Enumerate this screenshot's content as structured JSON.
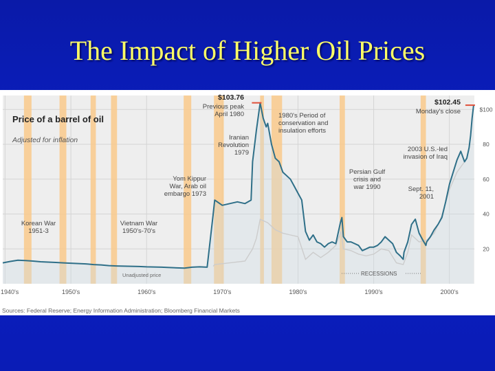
{
  "slide": {
    "title": "The Impact of Higher Oil Prices"
  },
  "chart_data": {
    "type": "line",
    "title": "Price of a barrel of oil",
    "subtitle": "Adjusted for inflation",
    "source": "Sources: Federal Reserve; Energy Information Administration; Bloomberg Financial Markets",
    "xlim": [
      1946,
      2008.3
    ],
    "ylim": [
      0,
      108
    ],
    "x_ticks": [
      {
        "label": "1940's",
        "x": 1946.3
      },
      {
        "label": "1950's",
        "x": 1955
      },
      {
        "label": "1960's",
        "x": 1965
      },
      {
        "label": "1970's",
        "x": 1975
      },
      {
        "label": "1980's",
        "x": 1985
      },
      {
        "label": "1990's",
        "x": 1995
      },
      {
        "label": "2000's",
        "x": 2005
      }
    ],
    "y_ticks": [
      {
        "label": "$100",
        "y": 100
      },
      {
        "label": "80",
        "y": 80
      },
      {
        "label": "60",
        "y": 60
      },
      {
        "label": "40",
        "y": 40
      },
      {
        "label": "20",
        "y": 20
      }
    ],
    "recessions": [
      [
        1948.8,
        1949.8
      ],
      [
        1953.5,
        1954.4
      ],
      [
        1957.6,
        1958.3
      ],
      [
        1960.3,
        1961.1
      ],
      [
        1969.9,
        1970.9
      ],
      [
        1973.9,
        1975.2
      ],
      [
        1980.0,
        1980.5
      ],
      [
        1981.5,
        1982.9
      ],
      [
        1990.5,
        1991.2
      ],
      [
        2001.2,
        2001.9
      ]
    ],
    "recessions_label": "RECESSIONS",
    "unadjusted_label": "Unadjusted price",
    "series": [
      {
        "role": "adjusted",
        "x": [
          1946,
          1947,
          1948,
          1949,
          1950,
          1951,
          1952,
          1953,
          1954,
          1955,
          1956,
          1957,
          1958,
          1959,
          1960,
          1961,
          1962,
          1963,
          1964,
          1965,
          1966,
          1967,
          1968,
          1969,
          1970,
          1971,
          1972,
          1973,
          1973.8,
          1974,
          1975,
          1976,
          1977,
          1978,
          1978.8,
          1979,
          1979.5,
          1980,
          1980.4,
          1980.8,
          1981,
          1981.5,
          1982,
          1982.5,
          1983,
          1983.5,
          1984,
          1984.5,
          1985,
          1985.5,
          1986,
          1986.5,
          1987,
          1987.5,
          1988,
          1988.5,
          1989,
          1989.5,
          1990,
          1990.6,
          1990.8,
          1991,
          1991.5,
          1992,
          1992.5,
          1993,
          1993.5,
          1994,
          1994.5,
          1995,
          1995.5,
          1996,
          1996.5,
          1997,
          1997.5,
          1998,
          1998.5,
          1998.9,
          1999,
          1999.5,
          2000,
          2000.5,
          2001,
          2001.5,
          2001.9,
          2002,
          2002.5,
          2003,
          2003.5,
          2004,
          2004.5,
          2005,
          2005.5,
          2006,
          2006.5,
          2007,
          2007.3,
          2007.6,
          2007.8,
          2008,
          2008.2
        ],
        "values": [
          12,
          12.8,
          13.5,
          13.3,
          13,
          12.6,
          12.4,
          12.2,
          12,
          11.8,
          11.6,
          11.4,
          11,
          10.8,
          10.4,
          10.2,
          10.1,
          10,
          9.9,
          9.7,
          9.6,
          9.5,
          9.3,
          9.1,
          9,
          9.5,
          9.7,
          9.5,
          40,
          48,
          45,
          46,
          47,
          46,
          48,
          70,
          88,
          103.8,
          95,
          90,
          92,
          80,
          72,
          70,
          64,
          62,
          60,
          56,
          52,
          48,
          30,
          25,
          28,
          24,
          23,
          21,
          23,
          24,
          23,
          35,
          38,
          27,
          24,
          24,
          23,
          22,
          19,
          20,
          21,
          21,
          22,
          24,
          27,
          25,
          23,
          18,
          16,
          14,
          18,
          24,
          34,
          37,
          29,
          25,
          22,
          24,
          27,
          31,
          34,
          38,
          47,
          57,
          64,
          71,
          76,
          70,
          72,
          78,
          85,
          95,
          102.45
        ],
        "color": "#2e6f88"
      },
      {
        "role": "unadjusted",
        "x": [
          1973.8,
          1974,
          1976,
          1978,
          1979,
          1979.5,
          1980,
          1981,
          1982,
          1983,
          1984,
          1985,
          1986,
          1987,
          1988,
          1989,
          1990,
          1990.7,
          1991,
          1992,
          1993,
          1994,
          1995,
          1996,
          1997,
          1998,
          1998.9,
          1999.5,
          2000,
          2001,
          2002,
          2003,
          2004,
          2005,
          2006,
          2007
        ],
        "values": [
          10,
          11,
          12,
          13,
          20,
          26,
          37,
          35,
          31,
          29,
          28,
          27,
          14,
          18,
          15,
          18,
          22,
          30,
          20,
          19,
          17,
          16,
          17,
          20,
          19,
          12,
          11,
          18,
          28,
          24,
          25,
          29,
          39,
          54,
          64,
          70
        ],
        "color": "#cccccc"
      }
    ],
    "annotations": [
      {
        "id": "korean-war",
        "lines": [
          "Korean War",
          "1951-3"
        ]
      },
      {
        "id": "vietnam-war",
        "lines": [
          "Vietnam War",
          "1950's-70's"
        ]
      },
      {
        "id": "yom-kippur",
        "lines": [
          "Yom Kippur",
          "War, Arab oil",
          "embargo 1973"
        ]
      },
      {
        "id": "iranian-revolution",
        "lines": [
          "Iranian",
          "Revolution",
          "1979"
        ]
      },
      {
        "id": "previous-peak",
        "value": "$103.76",
        "lines": [
          "Previous peak",
          "April 1980"
        ]
      },
      {
        "id": "conservation",
        "lines": [
          "1980's Period of",
          "conservation and",
          "insulation efforts"
        ]
      },
      {
        "id": "persian-gulf",
        "lines": [
          "Persian Gulf",
          "crisis and",
          "war 1990"
        ]
      },
      {
        "id": "sept-11",
        "lines": [
          "Sept. 11,",
          "2001"
        ]
      },
      {
        "id": "iraq-invasion",
        "lines": [
          "2003 U.S.-led",
          "invasion of Iraq"
        ]
      },
      {
        "id": "mondays-close",
        "value": "$102.45",
        "lines": [
          "Monday's close"
        ]
      }
    ]
  }
}
